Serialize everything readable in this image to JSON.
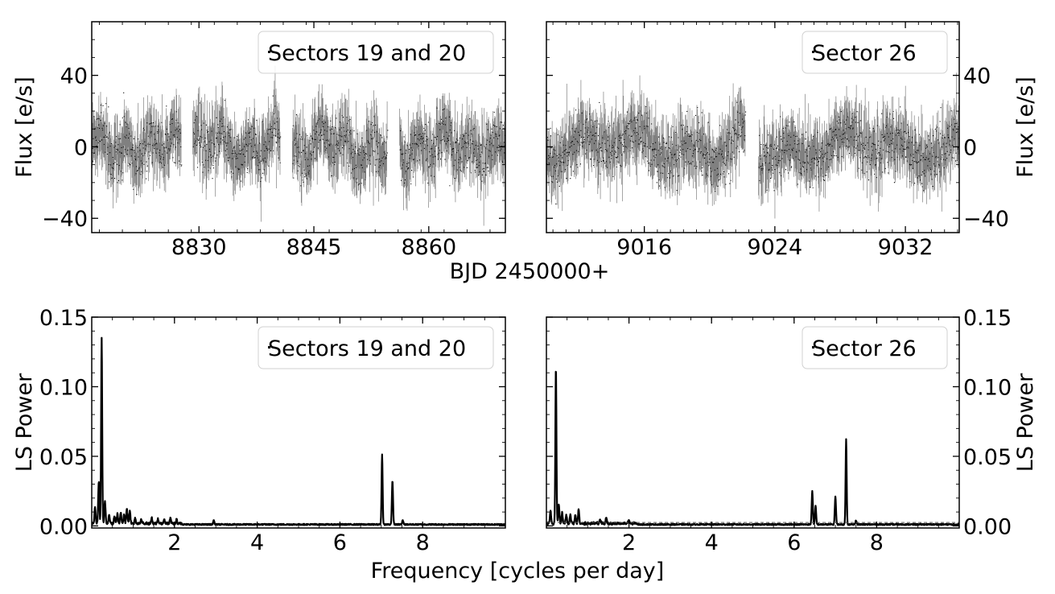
{
  "chart_data": [
    {
      "id": "lc-s1920",
      "type": "scatter",
      "legend": "Sectors 19 and 20",
      "legend_position": "top-right",
      "ylabel": "Flux [e/s]",
      "ylabel_side": "left",
      "xlim": [
        8816,
        8870
      ],
      "ylim": [
        -48,
        70
      ],
      "x_ticks": [
        8830,
        8845,
        8860
      ],
      "y_ticks": [
        -40,
        0,
        40
      ],
      "y_tick_labels": [
        "−40",
        "0",
        "40"
      ],
      "segments": [
        [
          8816.0,
          8827.7
        ],
        [
          8829.2,
          8840.6
        ],
        [
          8842.2,
          8854.6
        ],
        [
          8856.2,
          8870.0
        ]
      ],
      "marker_color": "#000000",
      "errorbar_color": "#808080"
    },
    {
      "id": "lc-s26",
      "type": "scatter",
      "legend": "Sector 26",
      "legend_position": "top-right",
      "ylabel": "Flux [e/s]",
      "ylabel_side": "right",
      "xlim": [
        9010.0,
        9035.3
      ],
      "ylim": [
        -48,
        70
      ],
      "x_ticks": [
        9016,
        9024,
        9032
      ],
      "y_ticks": [
        -40,
        0,
        40
      ],
      "y_tick_labels": [
        "−40",
        "0",
        "40"
      ],
      "segments": [
        [
          9010.0,
          9022.2
        ],
        [
          9023.0,
          9035.3
        ]
      ],
      "marker_color": "#000000",
      "errorbar_color": "#808080"
    },
    {
      "id": "ls-s1920",
      "type": "line",
      "legend": "Sectors 19 and 20",
      "legend_position": "top-right",
      "ylabel": "LS Power",
      "ylabel_side": "left",
      "xlim": [
        0,
        10
      ],
      "ylim": [
        -0.0015,
        0.15
      ],
      "x_ticks": [
        2,
        4,
        6,
        8
      ],
      "y_ticks": [
        0.0,
        0.05,
        0.1,
        0.15
      ],
      "y_tick_labels": [
        "0.00",
        "0.05",
        "0.10",
        "0.15"
      ],
      "baseline": 0.0015,
      "false_alarm_level": null,
      "peaks": [
        {
          "x": 0.08,
          "y": 0.012
        },
        {
          "x": 0.17,
          "y": 0.03
        },
        {
          "x": 0.24,
          "y": 0.133
        },
        {
          "x": 0.32,
          "y": 0.016
        },
        {
          "x": 0.42,
          "y": 0.006
        },
        {
          "x": 0.55,
          "y": 0.005
        },
        {
          "x": 0.62,
          "y": 0.007
        },
        {
          "x": 0.7,
          "y": 0.008
        },
        {
          "x": 0.78,
          "y": 0.006
        },
        {
          "x": 0.85,
          "y": 0.011
        },
        {
          "x": 0.92,
          "y": 0.009
        },
        {
          "x": 1.05,
          "y": 0.004
        },
        {
          "x": 1.2,
          "y": 0.003
        },
        {
          "x": 1.45,
          "y": 0.004
        },
        {
          "x": 1.6,
          "y": 0.003
        },
        {
          "x": 1.75,
          "y": 0.003
        },
        {
          "x": 1.9,
          "y": 0.004
        },
        {
          "x": 2.05,
          "y": 0.003
        },
        {
          "x": 2.95,
          "y": 0.003
        },
        {
          "x": 7.02,
          "y": 0.05
        },
        {
          "x": 7.27,
          "y": 0.031
        },
        {
          "x": 7.52,
          "y": 0.003
        }
      ]
    },
    {
      "id": "ls-s26",
      "type": "line",
      "legend": "Sector 26",
      "legend_position": "top-right",
      "ylabel": "LS Power",
      "ylabel_side": "right",
      "xlim": [
        0,
        10
      ],
      "ylim": [
        -0.0015,
        0.15
      ],
      "x_ticks": [
        2,
        4,
        6,
        8
      ],
      "y_ticks": [
        0.0,
        0.05,
        0.1,
        0.15
      ],
      "y_tick_labels": [
        "0.00",
        "0.05",
        "0.10",
        "0.15"
      ],
      "baseline": 0.0015,
      "false_alarm_level": 0.0025,
      "peaks": [
        {
          "x": 0.1,
          "y": 0.009
        },
        {
          "x": 0.23,
          "y": 0.113
        },
        {
          "x": 0.3,
          "y": 0.014
        },
        {
          "x": 0.38,
          "y": 0.008
        },
        {
          "x": 0.48,
          "y": 0.006
        },
        {
          "x": 0.58,
          "y": 0.006
        },
        {
          "x": 0.7,
          "y": 0.006
        },
        {
          "x": 0.78,
          "y": 0.01
        },
        {
          "x": 1.3,
          "y": 0.003
        },
        {
          "x": 1.45,
          "y": 0.004
        },
        {
          "x": 2.0,
          "y": 0.002
        },
        {
          "x": 6.44,
          "y": 0.024
        },
        {
          "x": 6.52,
          "y": 0.013
        },
        {
          "x": 7.0,
          "y": 0.02
        },
        {
          "x": 7.26,
          "y": 0.061
        },
        {
          "x": 7.5,
          "y": 0.003
        }
      ]
    }
  ],
  "figure": {
    "top_xlabel": "BJD 2450000+",
    "bottom_xlabel": "Frequency [cycles per day]"
  }
}
